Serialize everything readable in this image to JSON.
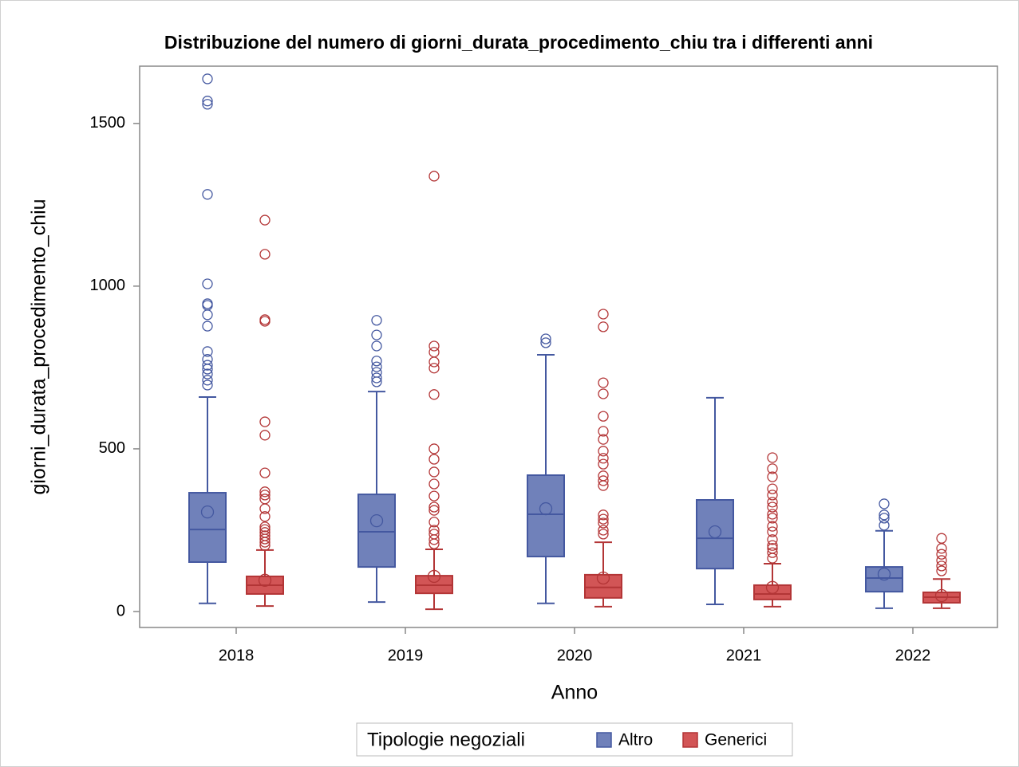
{
  "chart_data": {
    "type": "box",
    "title": "Distribuzione del numero di giorni_durata_procedimento_chiu tra i differenti anni",
    "x_label": "Anno",
    "y_label": "giorni_durata_procedimento_chiu",
    "categories": [
      "2018",
      "2019",
      "2020",
      "2021",
      "2022"
    ],
    "ylim": [
      -49,
      1676
    ],
    "yticks": [
      0,
      500,
      1000,
      1500
    ],
    "legend_title": "Tipologie negoziali",
    "legend_position": "bottom",
    "series": [
      {
        "name": "Altro",
        "color": "#7081ba",
        "edge_color": "#4458a0",
        "min": [
          25,
          29,
          25,
          22,
          10
        ],
        "q1": [
          152,
          137,
          169,
          132,
          61
        ],
        "median": [
          252,
          245,
          299,
          225,
          103
        ],
        "q3": [
          365,
          360,
          419,
          343,
          137
        ],
        "max": [
          659,
          676,
          789,
          657,
          248
        ],
        "mean": [
          306,
          279,
          316,
          245,
          115
        ],
        "outliers": [
          [
            1637,
            1569,
            1559,
            1282,
            1007,
            946,
            941,
            912,
            877,
            799,
            775,
            757,
            745,
            730,
            711,
            696
          ],
          [
            895,
            850,
            816,
            770,
            752,
            735,
            718,
            706
          ],
          [
            838,
            826
          ],
          [],
          [
            331,
            297,
            287,
            265
          ]
        ]
      },
      {
        "name": "Generici",
        "color": "#d25556",
        "edge_color": "#b33536",
        "min": [
          17,
          7,
          15,
          15,
          10
        ],
        "q1": [
          54,
          56,
          42,
          37,
          27
        ],
        "median": [
          81,
          81,
          74,
          54,
          44
        ],
        "q3": [
          108,
          110,
          113,
          81,
          59
        ],
        "max": [
          189,
          191,
          213,
          147,
          100
        ],
        "mean": [
          96,
          108,
          103,
          74,
          49
        ],
        "outliers": [
          [
            1203,
            1098,
            897,
            892,
            583,
            542,
            426,
            368,
            358,
            346,
            316,
            292,
            260,
            252,
            243,
            233,
            223,
            213,
            203
          ],
          [
            1338,
            816,
            797,
            767,
            748,
            667,
            500,
            468,
            429,
            392,
            355,
            321,
            311,
            275,
            250,
            238,
            221,
            208
          ],
          [
            914,
            875,
            703,
            669,
            600,
            554,
            529,
            493,
            471,
            453,
            417,
            402,
            387,
            297,
            284,
            272,
            250,
            238
          ],
          [
            473,
            439,
            414,
            377,
            358,
            336,
            321,
            299,
            287,
            262,
            245,
            221,
            203,
            194,
            181,
            164
          ],
          [
            225,
            194,
            176,
            157,
            140,
            125
          ]
        ]
      }
    ]
  }
}
